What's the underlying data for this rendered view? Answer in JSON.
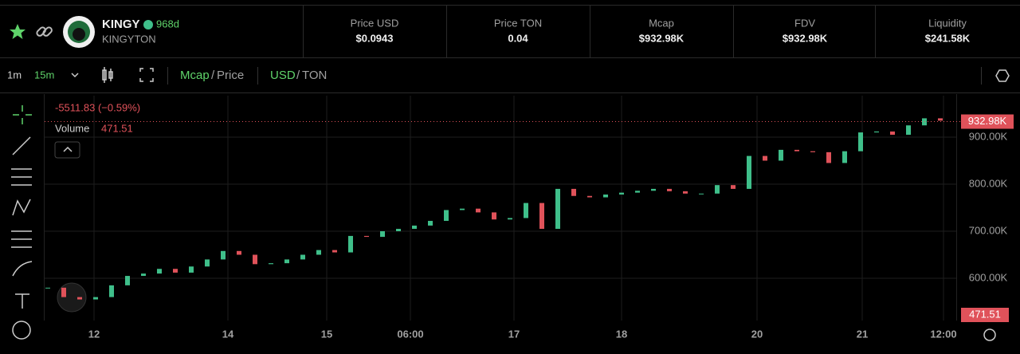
{
  "header": {
    "name": "KINGY",
    "age": "968d",
    "ticker": "KINGYTON"
  },
  "stats": [
    {
      "label": "Price USD",
      "value": "$0.0943"
    },
    {
      "label": "Price TON",
      "value": "0.04"
    },
    {
      "label": "Mcap",
      "value": "$932.98K"
    },
    {
      "label": "FDV",
      "value": "$932.98K"
    },
    {
      "label": "Liquidity",
      "value": "$241.58K"
    }
  ],
  "toolbar": {
    "intervals": [
      "1m",
      "15m"
    ],
    "metric": [
      "Mcap",
      "/",
      "Price"
    ],
    "currency": [
      "USD",
      "/",
      "TON"
    ]
  },
  "chart": {
    "type": "candlestick",
    "legend": {
      "change": "-5511.83 (−0.59%)",
      "volume_label": "Volume",
      "volume_value": "471.51"
    },
    "up_color": "#3fbf8a",
    "down_color": "#e0525a",
    "values": [
      580000,
      560000,
      555000,
      560000,
      585000,
      605000,
      610000,
      620000,
      612000,
      625000,
      640000,
      658000,
      650000,
      630000,
      632000,
      640000,
      650000,
      660000,
      655000,
      690000,
      688000,
      700000,
      705000,
      712000,
      722000,
      745000,
      748000,
      740000,
      725000,
      728000,
      760000,
      705000,
      790000,
      775000,
      772000,
      778000,
      782000,
      786000,
      790000,
      785000,
      780000,
      780000,
      798000,
      790000,
      860000,
      850000,
      873000,
      870000,
      868000,
      845000,
      870000,
      910000,
      912000,
      905000,
      925000,
      940000,
      935000
    ],
    "xlim": [
      0,
      57
    ],
    "xticks": [
      {
        "value": 2.9,
        "label": "12"
      },
      {
        "value": 11.3,
        "label": "14"
      },
      {
        "value": 17.5,
        "label": "15"
      },
      {
        "value": 22.75,
        "label": "06:00"
      },
      {
        "value": 29.25,
        "label": "17"
      },
      {
        "value": 36,
        "label": "18"
      },
      {
        "value": 44.5,
        "label": "20"
      },
      {
        "value": 51.1,
        "label": "21"
      },
      {
        "value": 56.2,
        "label": "12:00"
      }
    ],
    "ylim": [
      513600,
      988100
    ],
    "yticks": [
      {
        "value": 600000,
        "label": "600.00K"
      },
      {
        "value": 700000,
        "label": "700.00K"
      },
      {
        "value": 800000,
        "label": "800.00K"
      },
      {
        "value": 900000,
        "label": "900.00K"
      }
    ],
    "last_price": {
      "value": 932980,
      "label": "932.98K"
    },
    "grid": true
  }
}
